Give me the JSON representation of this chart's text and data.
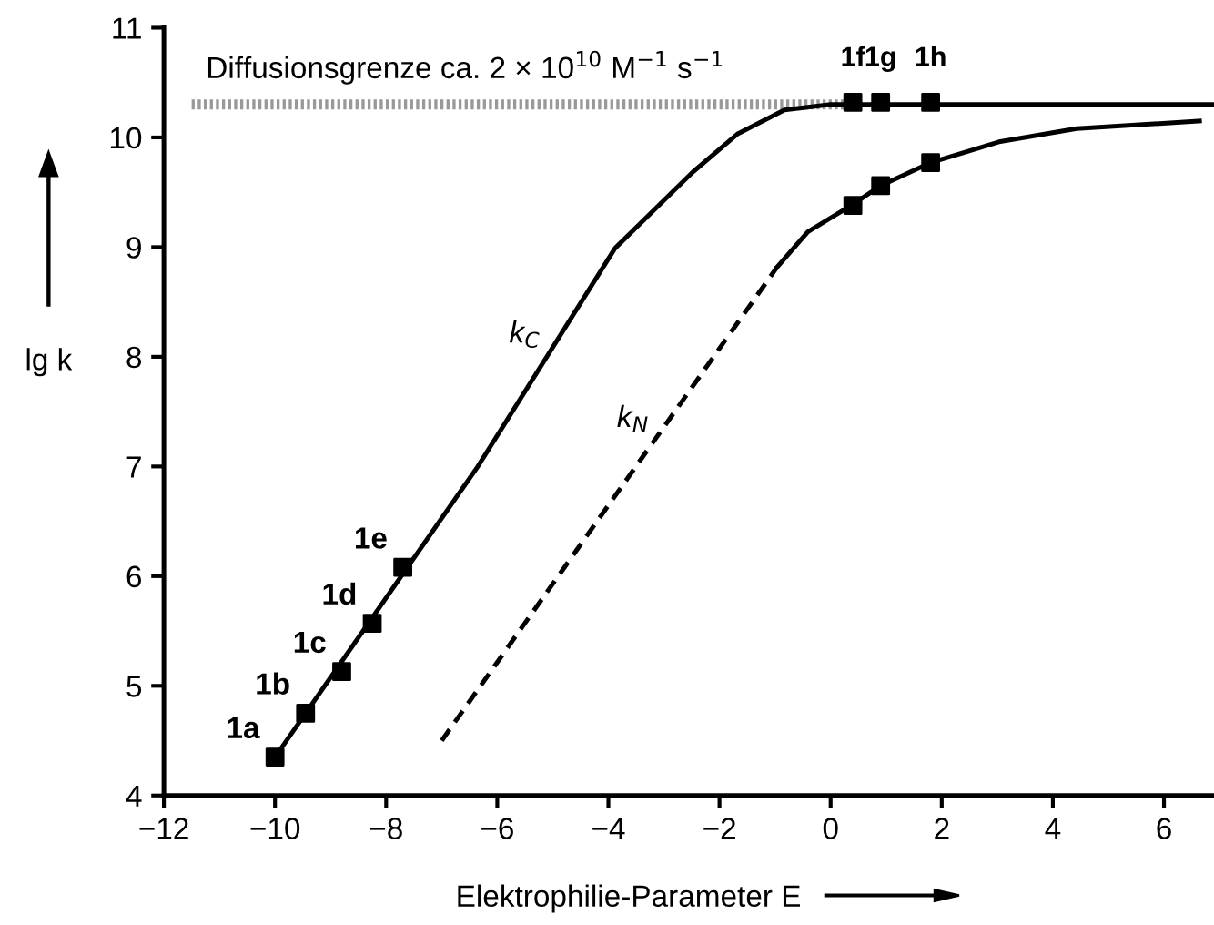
{
  "chart_data": {
    "type": "line",
    "xlabel": "Elektrophilie-Parameter E",
    "ylabel": "lg k",
    "xlim": [
      -12,
      6.9
    ],
    "ylim": [
      4,
      11
    ],
    "xticks": [
      {
        "value": -12,
        "label": "−12"
      },
      {
        "value": -10,
        "label": "−10"
      },
      {
        "value": -8,
        "label": "−8"
      },
      {
        "value": -6,
        "label": "−6"
      },
      {
        "value": -4,
        "label": "−4"
      },
      {
        "value": -2,
        "label": "−2"
      },
      0,
      2,
      4,
      6
    ],
    "yticks": [
      4,
      5,
      6,
      7,
      8,
      9,
      10,
      11
    ],
    "grid": false,
    "marker": "none",
    "series": [
      {
        "color": "#999999",
        "line_style": "dotted",
        "x": [
          -11.5,
          0.4
        ],
        "values": [
          10.3,
          10.3
        ]
      },
      {
        "color": "#000000",
        "line_style": "solid",
        "x": [
          -10,
          -6.35,
          -3.88,
          -2.49,
          -1.68,
          -0.83,
          0.0,
          6.9
        ],
        "values": [
          4.35,
          7.0,
          8.99,
          9.68,
          10.03,
          10.25,
          10.3,
          10.3
        ]
      },
      {
        "color": "#000000",
        "line_style": "dashed",
        "x": [
          -7.0,
          -0.96
        ],
        "values": [
          4.5,
          8.82
        ]
      },
      {
        "color": "#000000",
        "line_style": "solid",
        "x": [
          -0.96,
          -0.41,
          0.37,
          0.9,
          1.8,
          3.03,
          4.43,
          6.64
        ],
        "values": [
          8.82,
          9.14,
          9.38,
          9.56,
          9.77,
          9.96,
          10.08,
          10.15
        ]
      },
      {
        "type": "scatter",
        "color": "#000000",
        "marker": "square",
        "x": [
          -10,
          -9.45,
          -8.8,
          -8.25,
          -7.7
        ],
        "values": [
          4.35,
          4.75,
          5.13,
          5.57,
          6.08
        ]
      },
      {
        "type": "scatter",
        "color": "#000000",
        "marker": "square",
        "x": [
          0.4,
          0.9,
          1.8
        ],
        "values": [
          10.32,
          10.32,
          10.32
        ]
      },
      {
        "type": "scatter",
        "color": "#000000",
        "marker": "square",
        "x": [
          0.4,
          0.9,
          1.8
        ],
        "values": [
          9.38,
          9.56,
          9.77
        ]
      }
    ],
    "annotations": [
      "Diffusionsgrenze ca. 2 × 10$^{10}$ M$^{−1}$ s$^{−1}$",
      {
        "text": "1a",
        "x": -10,
        "y": 4.35
      },
      {
        "text": "1b",
        "x": -9.45,
        "y": 4.75
      },
      {
        "text": "1c",
        "x": -8.8,
        "y": 5.13
      },
      {
        "text": "1d",
        "x": -8.25,
        "y": 5.57
      },
      {
        "text": "1e",
        "x": -7.7,
        "y": 6.08
      },
      {
        "text": "1f",
        "x": 0.4,
        "y": 10.32
      },
      {
        "text": "1g",
        "x": 0.9,
        "y": 10.32
      },
      {
        "text": "1h",
        "x": 1.8,
        "y": 10.32
      },
      {
        "text": "k$_{C}$",
        "x": -4.86,
        "y": 8.2
      },
      {
        "text": "k$_{N}$",
        "x": -2.9,
        "y": 7.43
      }
    ]
  }
}
